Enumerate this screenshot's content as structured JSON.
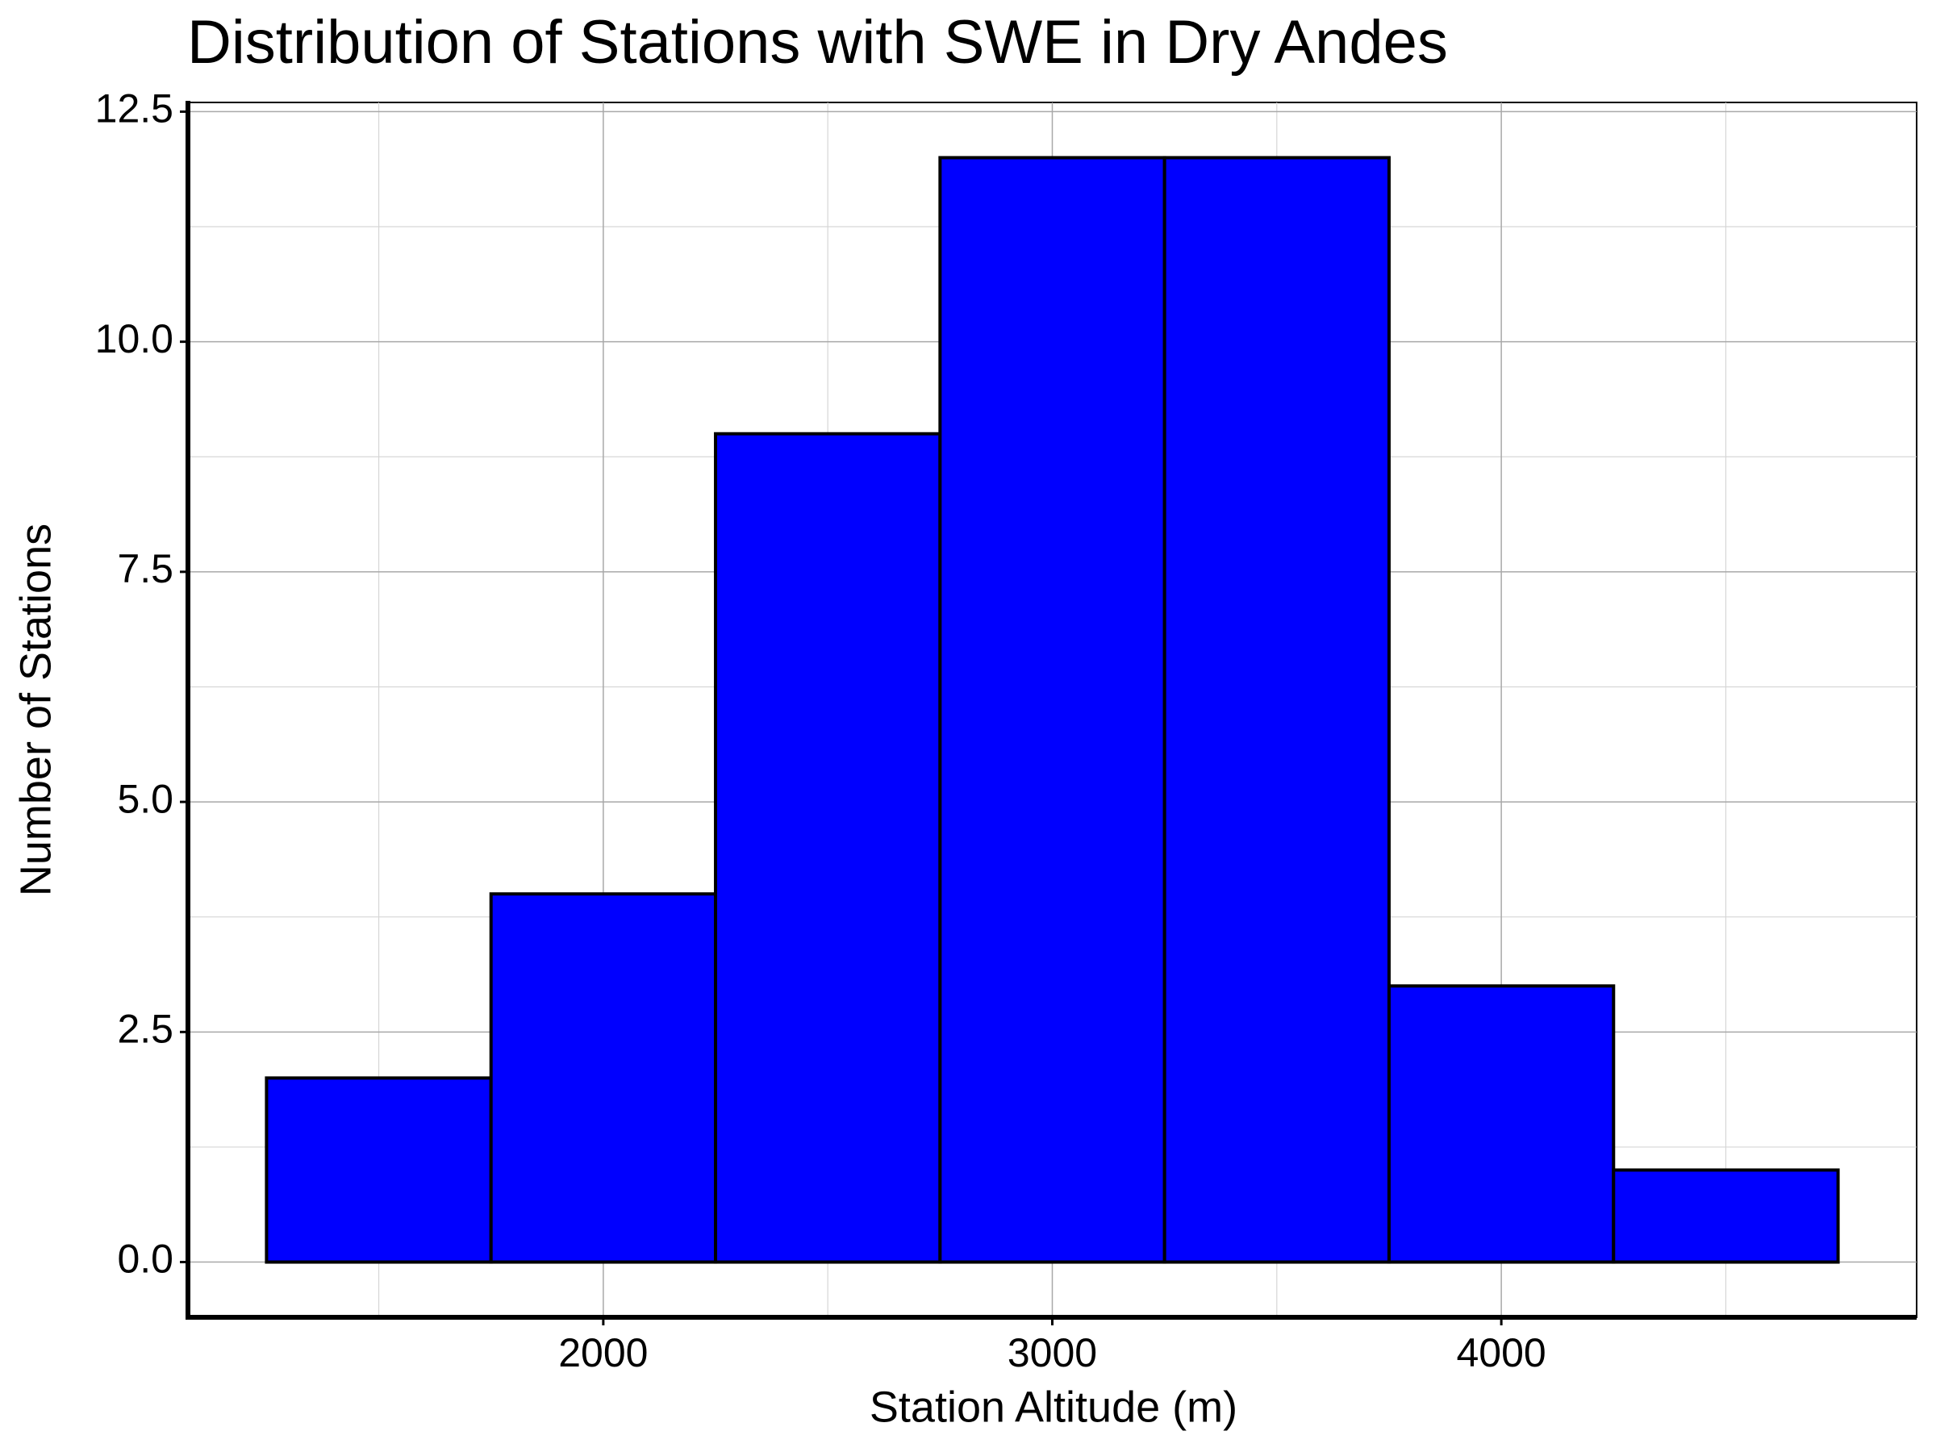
{
  "chart_data": {
    "type": "histogram",
    "title": "Distribution of Stations with SWE in Dry Andes",
    "x_label": "Station Altitude (m)",
    "y_label": "Number of Stations",
    "bins": [
      1250,
      1750,
      2250,
      2750,
      3250,
      3750,
      4250,
      4750
    ],
    "values": [
      2,
      4,
      9,
      12,
      12,
      3,
      1
    ],
    "color": "#0000ff",
    "edge_color": "#000000",
    "xlim": [
      1075,
      4925
    ],
    "ylim": [
      -0.6,
      12.6
    ],
    "xticks": [
      2000,
      3000,
      4000
    ],
    "yticks": [
      {
        "value": 0,
        "label": "0.0"
      },
      2.5,
      {
        "value": 5,
        "label": "5.0"
      },
      7.5,
      {
        "value": 10,
        "label": "10.0"
      },
      12.5
    ],
    "x_minor_ticks": [
      1500,
      2500,
      3500,
      4500
    ],
    "y_minor_ticks": [
      1.25,
      3.75,
      6.25,
      8.75,
      11.25
    ],
    "grid": true
  }
}
